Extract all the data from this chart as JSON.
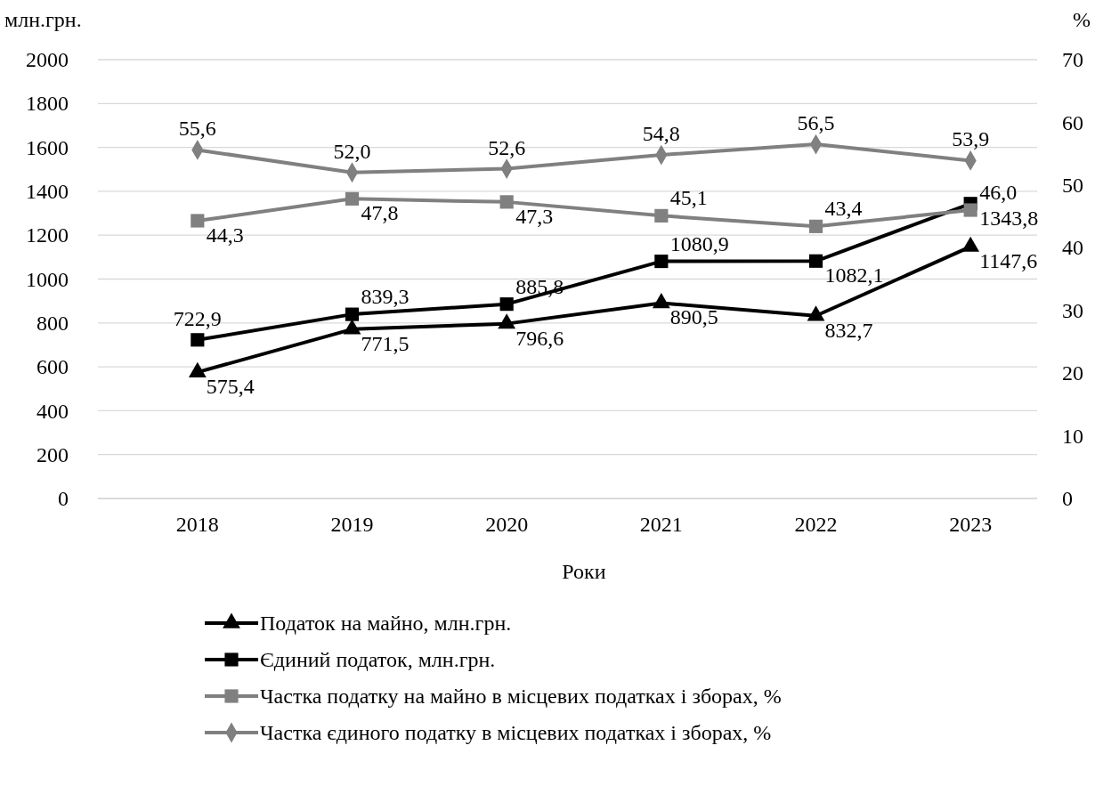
{
  "chart_data": {
    "type": "line",
    "xlabel": "Роки",
    "ylabel": "млн.грн.",
    "y2label": "%",
    "categories": [
      "2018",
      "2019",
      "2020",
      "2021",
      "2022",
      "2023"
    ],
    "ylim": [
      0,
      2000
    ],
    "yticks": [
      0,
      200,
      400,
      600,
      800,
      1000,
      1200,
      1400,
      1600,
      1800,
      2000
    ],
    "y2lim": [
      0,
      70
    ],
    "y2ticks": [
      0,
      10,
      20,
      30,
      40,
      50,
      60,
      70
    ],
    "grid": "y",
    "legend": "bottom",
    "line_style": "solid",
    "series": [
      {
        "name": "Податок на майно, млн.грн.",
        "color": "#000000",
        "marker": "triangle",
        "values": [
          575.4,
          771.5,
          796.6,
          890.5,
          832.7,
          1147.6
        ],
        "value_labels": [
          "575,4",
          "771,5",
          "796,6",
          "890,5",
          "832,7",
          "1147,6"
        ]
      },
      {
        "name": "Єдиний податок, млн.грн.",
        "color": "#000000",
        "marker": "square",
        "values": [
          722.9,
          839.3,
          885.8,
          1080.9,
          1082.1,
          1343.8
        ],
        "value_labels": [
          "722,9",
          "839,3",
          "885,8",
          "1080,9",
          "1082,1",
          "1343,8"
        ]
      },
      {
        "name": "Частка податку на майно в місцевих податках і зборах, %",
        "color": "#808080",
        "marker": "square",
        "axis": "y2",
        "values": [
          44.3,
          47.8,
          47.3,
          45.1,
          43.4,
          46.0
        ],
        "value_labels": [
          "44,3",
          "47,8",
          "47,3",
          "45,1",
          "43,4",
          "46,0"
        ]
      },
      {
        "name": "Частка єдиного податку в місцевих податках і зборах, %",
        "color": "#808080",
        "marker": "diamond",
        "axis": "y2",
        "values": [
          55.6,
          52.0,
          52.6,
          54.8,
          56.5,
          53.9
        ],
        "value_labels": [
          "55,6",
          "52,0",
          "52,6",
          "54,8",
          "56,5",
          "53,9"
        ]
      }
    ]
  }
}
